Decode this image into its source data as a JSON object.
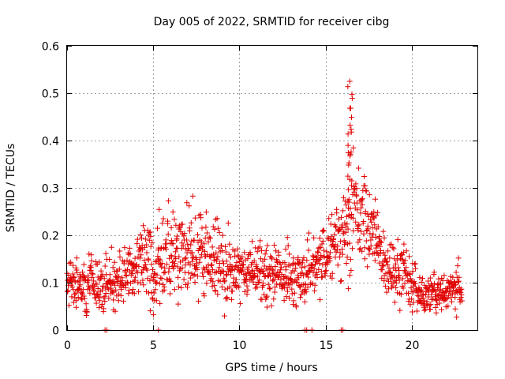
{
  "chart_data": {
    "type": "scatter",
    "title": "Day 005 of 2022, SRMTID for receiver cibg",
    "xlabel": "GPS time / hours",
    "ylabel": "SRMTID / TECUs",
    "xlim": [
      0,
      23.8
    ],
    "ylim": [
      0,
      0.6
    ],
    "x_ticks": [
      0,
      5,
      10,
      15,
      20
    ],
    "x_tick_labels": [
      "0",
      "5",
      "10",
      "15",
      "20"
    ],
    "y_ticks": [
      0,
      0.1,
      0.2,
      0.3,
      0.4,
      0.5,
      0.6
    ],
    "y_tick_labels": [
      "0",
      "0.1",
      "0.2",
      "0.3",
      "0.4",
      "0.5",
      "0.6"
    ],
    "grid": true,
    "marker": "plus",
    "color": "#e00000",
    "x_range_hours": [
      0,
      22.9
    ],
    "profile": [
      {
        "x": 0.0,
        "mean": 0.095,
        "spread": 0.03
      },
      {
        "x": 1.0,
        "mean": 0.1,
        "spread": 0.03
      },
      {
        "x": 2.0,
        "mean": 0.09,
        "spread": 0.03
      },
      {
        "x": 3.0,
        "mean": 0.11,
        "spread": 0.03
      },
      {
        "x": 4.0,
        "mean": 0.13,
        "spread": 0.035
      },
      {
        "x": 5.0,
        "mean": 0.14,
        "spread": 0.045
      },
      {
        "x": 5.6,
        "mean": 0.16,
        "spread": 0.05
      },
      {
        "x": 6.5,
        "mean": 0.15,
        "spread": 0.045
      },
      {
        "x": 7.6,
        "mean": 0.17,
        "spread": 0.055
      },
      {
        "x": 8.5,
        "mean": 0.14,
        "spread": 0.04
      },
      {
        "x": 9.5,
        "mean": 0.13,
        "spread": 0.035
      },
      {
        "x": 11.0,
        "mean": 0.12,
        "spread": 0.03
      },
      {
        "x": 12.5,
        "mean": 0.12,
        "spread": 0.03
      },
      {
        "x": 13.5,
        "mean": 0.11,
        "spread": 0.03
      },
      {
        "x": 14.5,
        "mean": 0.14,
        "spread": 0.035
      },
      {
        "x": 15.5,
        "mean": 0.18,
        "spread": 0.035
      },
      {
        "x": 16.2,
        "mean": 0.2,
        "spread": 0.05
      },
      {
        "x": 16.5,
        "mean": 0.33,
        "spread": 0.1
      },
      {
        "x": 16.9,
        "mean": 0.22,
        "spread": 0.06
      },
      {
        "x": 17.3,
        "mean": 0.23,
        "spread": 0.06
      },
      {
        "x": 17.8,
        "mean": 0.2,
        "spread": 0.035
      },
      {
        "x": 18.5,
        "mean": 0.13,
        "spread": 0.03
      },
      {
        "x": 19.5,
        "mean": 0.12,
        "spread": 0.03
      },
      {
        "x": 20.5,
        "mean": 0.075,
        "spread": 0.02
      },
      {
        "x": 21.5,
        "mean": 0.08,
        "spread": 0.02
      },
      {
        "x": 22.9,
        "mean": 0.09,
        "spread": 0.025
      }
    ],
    "peak": {
      "x": 16.4,
      "y": 0.525
    },
    "baseline_points": [
      {
        "x": 2.2,
        "y": 0.0
      },
      {
        "x": 2.3,
        "y": 0.0
      },
      {
        "x": 5.3,
        "y": 0.0
      },
      {
        "x": 13.8,
        "y": 0.0
      },
      {
        "x": 13.9,
        "y": 0.0
      },
      {
        "x": 14.2,
        "y": 0.0
      },
      {
        "x": 15.9,
        "y": 0.0
      },
      {
        "x": 16.0,
        "y": 0.0
      }
    ],
    "point_count": 1400
  }
}
